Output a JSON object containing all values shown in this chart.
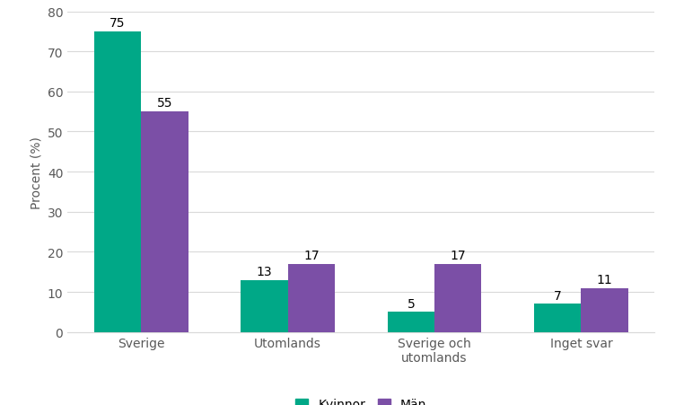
{
  "categories": [
    "Sverige",
    "Utomlands",
    "Sverige och\nutomlands",
    "Inget svar"
  ],
  "kvinnor_values": [
    75,
    13,
    5,
    7
  ],
  "man_values": [
    55,
    17,
    17,
    11
  ],
  "kvinnor_color": "#00A887",
  "man_color": "#7B4FA6",
  "ylabel": "Procent (%)",
  "ylim": [
    0,
    80
  ],
  "yticks": [
    0,
    10,
    20,
    30,
    40,
    50,
    60,
    70,
    80
  ],
  "legend_kvinnor": "Kvinnor",
  "legend_man": "Män",
  "bar_width": 0.32,
  "background_color": "#ffffff",
  "grid_color": "#d9d9d9",
  "text_color": "#595959",
  "label_fontsize": 10,
  "tick_fontsize": 10,
  "legend_fontsize": 10,
  "value_fontsize": 10
}
